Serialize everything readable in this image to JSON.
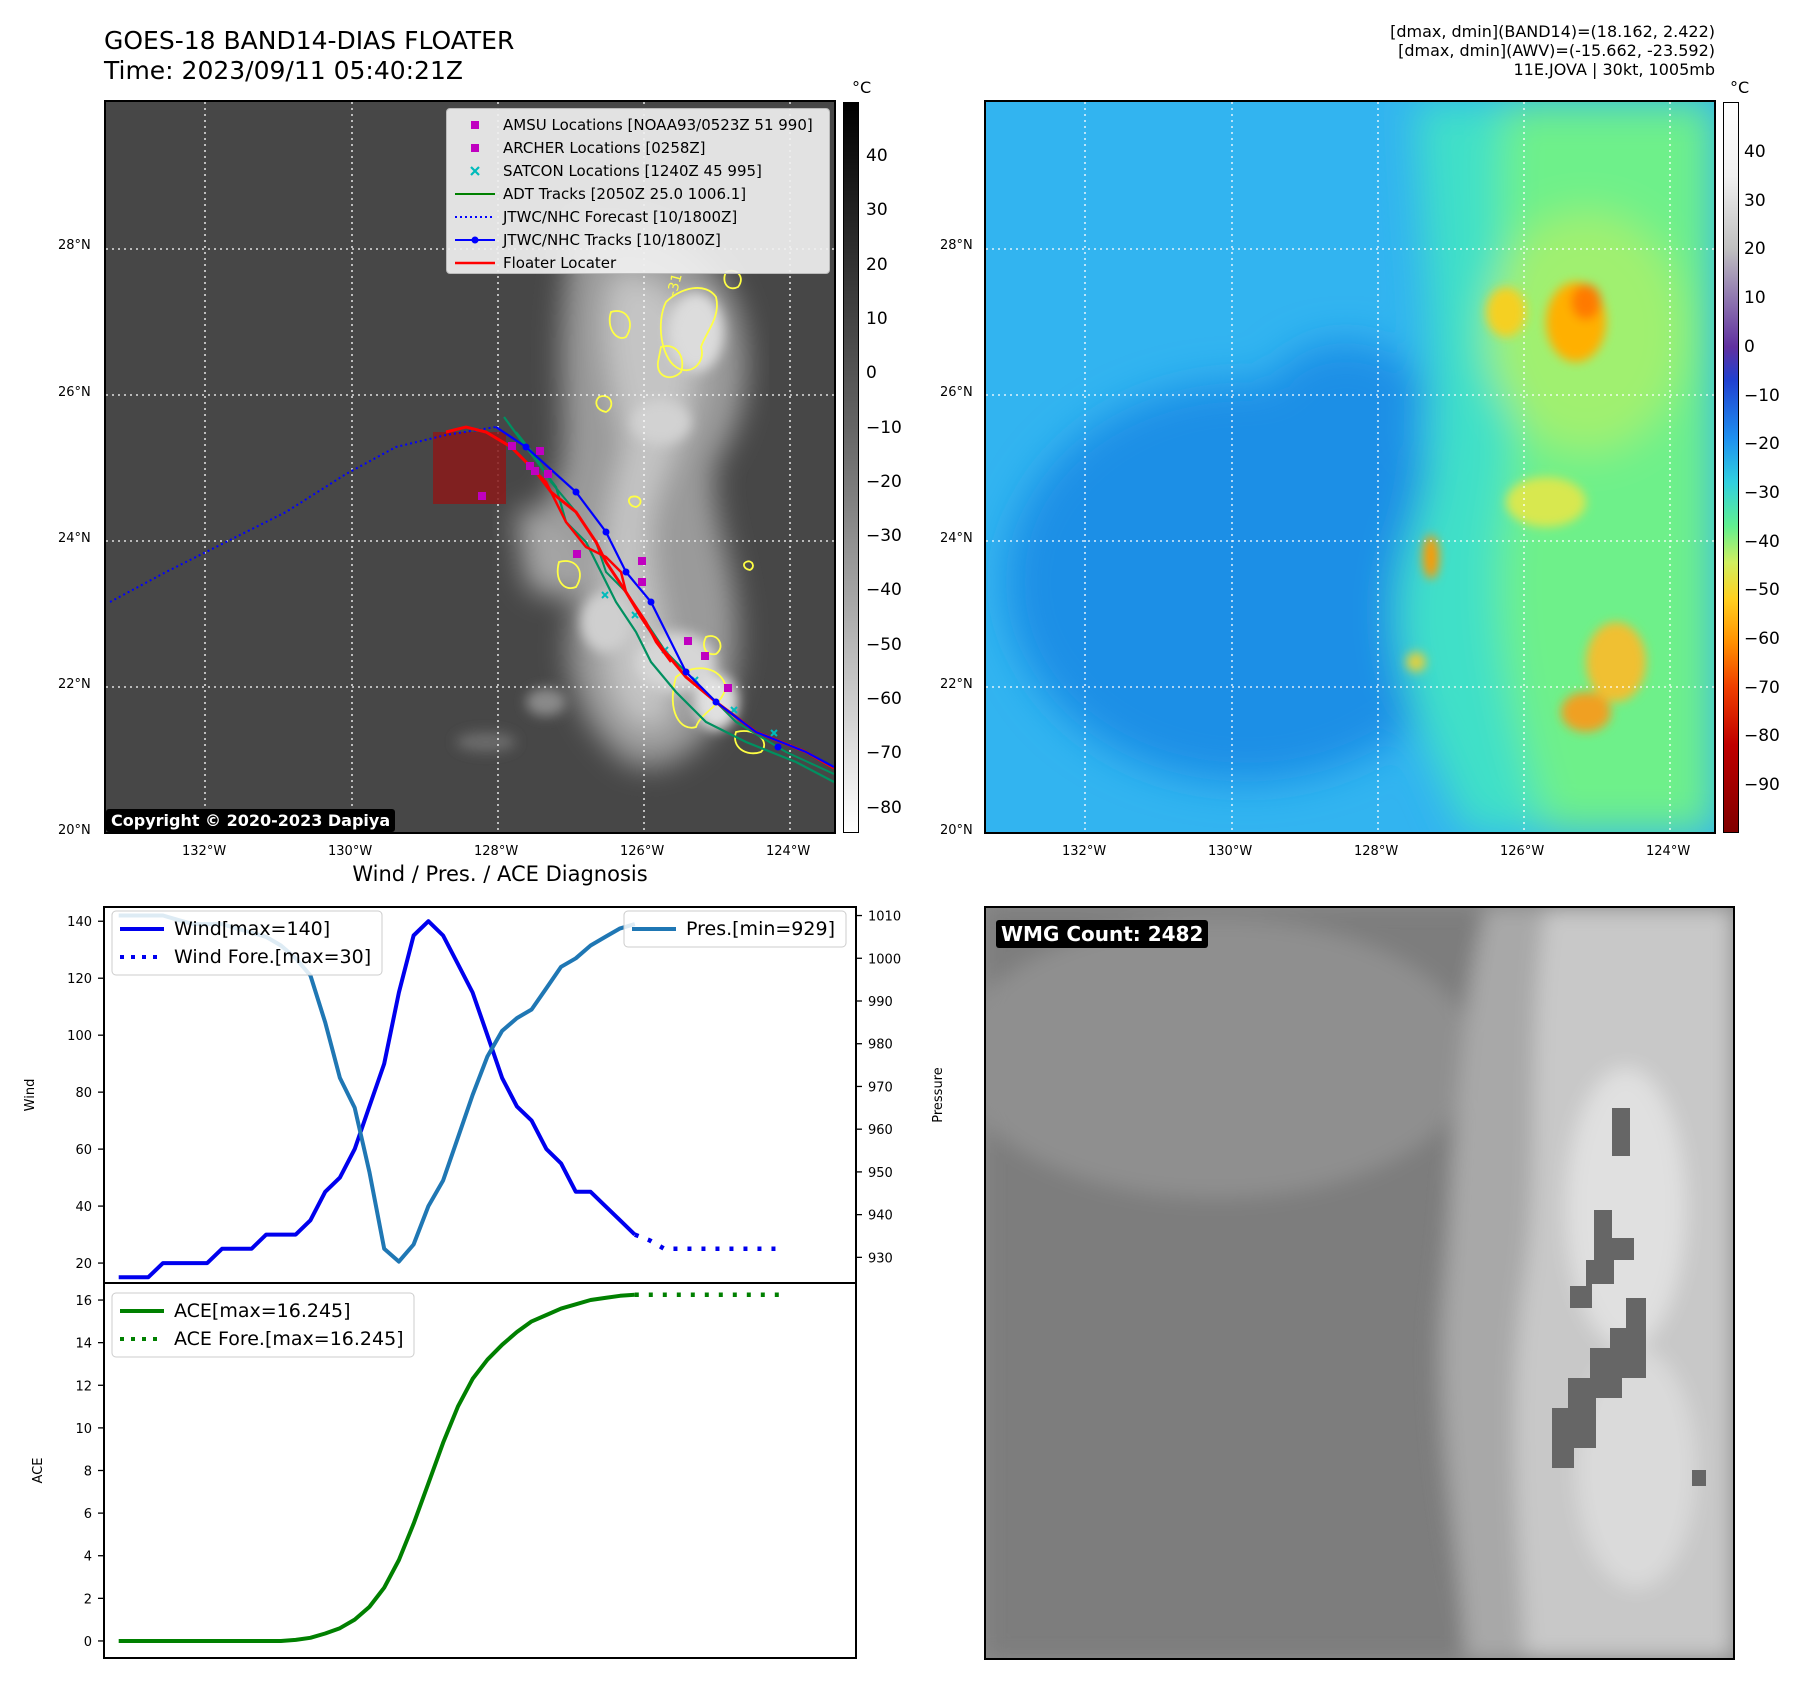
{
  "header": {
    "title_line1": "GOES-18 BAND14-DIAS FLOATER",
    "title_line2": "Time: 2023/09/11 05:40:21Z",
    "info_line1": "[dmax, dmin](BAND14)=(18.162, 2.422)",
    "info_line2": "[dmax, dmin](AWV)=(-15.662, -23.592)",
    "info_line3": "11E.JOVA | 30kt, 1005mb"
  },
  "map": {
    "lat_labels": [
      "28°N",
      "26°N",
      "24°N",
      "22°N",
      "20°N"
    ],
    "lon_labels": [
      "132°W",
      "130°W",
      "128°W",
      "126°W",
      "124°W"
    ],
    "copyright": "Copyright © 2020-2023 Dapiya",
    "contour_label": "-31",
    "colors": {
      "forecast": "#0000ff",
      "jtwc": "#0000ff",
      "adt": "#008000",
      "floater": "#ff0000",
      "amsu": "#c000c0",
      "satcon": "#00bbbb",
      "box": "#8b1a1a",
      "contour": "#ffff44"
    }
  },
  "legend": {
    "items": [
      {
        "label": "AMSU Locations [NOAA93/0523Z 51 990]",
        "icon": "square-marker",
        "color": "#c000c0"
      },
      {
        "label": "ARCHER Locations [0258Z]",
        "icon": "square-marker",
        "color": "#c000c0"
      },
      {
        "label": "SATCON Locations [1240Z 45 995]",
        "icon": "x-marker",
        "color": "#00bbbb"
      },
      {
        "label": "ADT Tracks [2050Z 25.0 1006.1]",
        "icon": "solid-line",
        "color": "#008000"
      },
      {
        "label": "JTWC/NHC Forecast [10/1800Z]",
        "icon": "dotted-line",
        "color": "#0000ff"
      },
      {
        "label": "JTWC/NHC Tracks [10/1800Z]",
        "icon": "line-dot",
        "color": "#0000ff"
      },
      {
        "label": "Floater Locater",
        "icon": "solid-line",
        "color": "#ff0000"
      }
    ]
  },
  "colorbar_left": {
    "unit": "°C",
    "ticks": [
      "40",
      "30",
      "20",
      "10",
      "0",
      "−10",
      "−20",
      "−30",
      "−40",
      "−50",
      "−60",
      "−70",
      "−80"
    ]
  },
  "colorbar_right": {
    "unit": "°C",
    "ticks": [
      "40",
      "30",
      "20",
      "10",
      "0",
      "−10",
      "−20",
      "−30",
      "−40",
      "−50",
      "−60",
      "−70",
      "−80",
      "−90"
    ]
  },
  "wmg": {
    "label": "WMG Count: 2482"
  },
  "chart_data": [
    {
      "type": "line",
      "title": "Wind / Pres. / ACE Diagnosis",
      "ylabel": "Wind",
      "y2label": "Pressure",
      "ylim": [
        13,
        145
      ],
      "y2lim": [
        924,
        1012
      ],
      "yticks": [
        "20",
        "40",
        "60",
        "80",
        "100",
        "120",
        "140"
      ],
      "y2ticks": [
        "930",
        "940",
        "950",
        "960",
        "970",
        "980",
        "990",
        "1000",
        "1010"
      ],
      "x": [
        0,
        1,
        2,
        3,
        4,
        5,
        6,
        7,
        8,
        9,
        10,
        11,
        12,
        13,
        14,
        15,
        16,
        17,
        18,
        19,
        20,
        21,
        22,
        23,
        24,
        25,
        26,
        27,
        28,
        29,
        30,
        31,
        32,
        33,
        34,
        35,
        36,
        37,
        38,
        39,
        40,
        41,
        42,
        43,
        44,
        45,
        46,
        47,
        48
      ],
      "series": [
        {
          "name": "Wind[max=140]",
          "color": "#0000ee",
          "style": "solid",
          "values": [
            15,
            15,
            15,
            20,
            20,
            20,
            20,
            25,
            25,
            25,
            30,
            30,
            30,
            35,
            45,
            50,
            60,
            75,
            90,
            115,
            135,
            140,
            135,
            125,
            115,
            100,
            85,
            75,
            70,
            60,
            55,
            45,
            45,
            40,
            35,
            30,
            null,
            null,
            null,
            null,
            null,
            null,
            null,
            null,
            null,
            null,
            null,
            null,
            null
          ]
        },
        {
          "name": "Wind Fore.[max=30]",
          "color": "#0000ee",
          "style": "dotted",
          "values": [
            null,
            null,
            null,
            null,
            null,
            null,
            null,
            null,
            null,
            null,
            null,
            null,
            null,
            null,
            null,
            null,
            null,
            null,
            null,
            null,
            null,
            null,
            null,
            null,
            null,
            null,
            null,
            null,
            null,
            null,
            null,
            null,
            null,
            null,
            null,
            30,
            28,
            25,
            25,
            25,
            25,
            25,
            25,
            25,
            25,
            25,
            null,
            null,
            null
          ]
        },
        {
          "name": "Pres.[min=929]",
          "color": "#1f77b4",
          "style": "solid",
          "axis": "right",
          "values": [
            1010,
            1010,
            1010,
            1010,
            1009,
            1008,
            1008,
            1008,
            1007,
            1006,
            1005,
            1003,
            1000,
            996,
            985,
            972,
            965,
            950,
            932,
            929,
            933,
            942,
            948,
            958,
            968,
            977,
            983,
            986,
            988,
            993,
            998,
            1000,
            1003,
            1005,
            1007,
            1008,
            null,
            null,
            null,
            null,
            null,
            null,
            null,
            null,
            null,
            null,
            null,
            null,
            null
          ]
        }
      ]
    },
    {
      "type": "line",
      "ylabel": "ACE",
      "ylim": [
        -0.8,
        16.8
      ],
      "yticks": [
        "0",
        "2",
        "4",
        "6",
        "8",
        "10",
        "12",
        "14",
        "16"
      ],
      "x": [
        0,
        1,
        2,
        3,
        4,
        5,
        6,
        7,
        8,
        9,
        10,
        11,
        12,
        13,
        14,
        15,
        16,
        17,
        18,
        19,
        20,
        21,
        22,
        23,
        24,
        25,
        26,
        27,
        28,
        29,
        30,
        31,
        32,
        33,
        34,
        35,
        36,
        37,
        38,
        39,
        40,
        41,
        42,
        43,
        44,
        45,
        46,
        47,
        48
      ],
      "series": [
        {
          "name": "ACE[max=16.245]",
          "color": "#008000",
          "style": "solid",
          "values": [
            0,
            0,
            0,
            0,
            0,
            0,
            0,
            0,
            0,
            0,
            0,
            0,
            0.05,
            0.15,
            0.35,
            0.6,
            1.0,
            1.6,
            2.5,
            3.8,
            5.5,
            7.4,
            9.3,
            11.0,
            12.3,
            13.2,
            13.9,
            14.5,
            15.0,
            15.3,
            15.6,
            15.8,
            16.0,
            16.1,
            16.2,
            16.245,
            null,
            null,
            null,
            null,
            null,
            null,
            null,
            null,
            null,
            null,
            null,
            null,
            null
          ]
        },
        {
          "name": "ACE Fore.[max=16.245]",
          "color": "#008000",
          "style": "dotted",
          "values": [
            null,
            null,
            null,
            null,
            null,
            null,
            null,
            null,
            null,
            null,
            null,
            null,
            null,
            null,
            null,
            null,
            null,
            null,
            null,
            null,
            null,
            null,
            null,
            null,
            null,
            null,
            null,
            null,
            null,
            null,
            null,
            null,
            null,
            null,
            null,
            16.245,
            16.245,
            16.245,
            16.245,
            16.245,
            16.245,
            16.245,
            16.245,
            16.245,
            16.245,
            16.245,
            null,
            null,
            null
          ]
        }
      ]
    }
  ]
}
